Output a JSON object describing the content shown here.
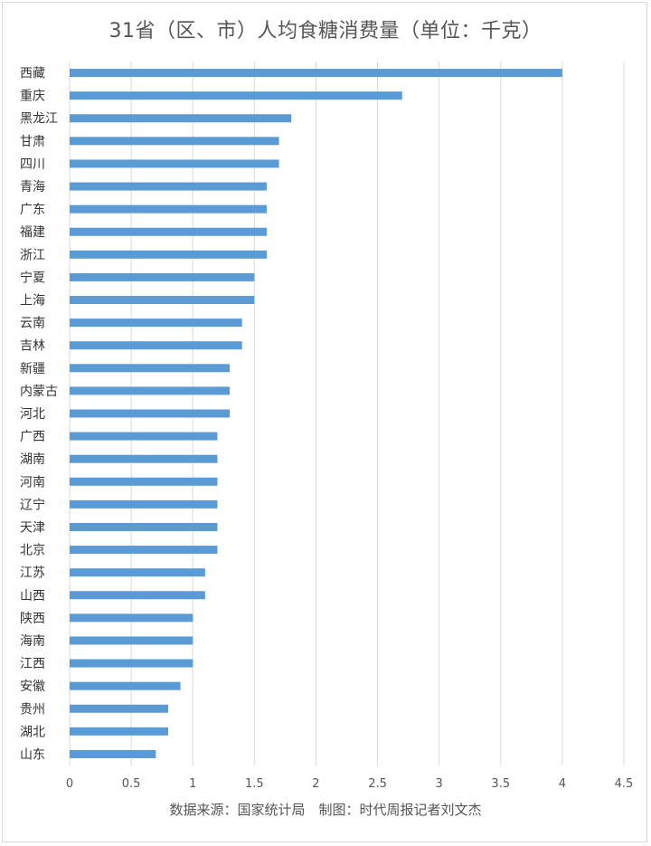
{
  "chart_data": {
    "type": "bar",
    "orientation": "horizontal",
    "title": "31省（区、市）人均食糖消费量（单位：千克）",
    "source_note": "数据来源：国家统计局　制图：时代周报记者刘文杰",
    "xlabel": "",
    "ylabel": "",
    "xlim": [
      0,
      4.5
    ],
    "xticks": [
      "0",
      "0.5",
      "1",
      "1.5",
      "2",
      "2.5",
      "3",
      "3.5",
      "4",
      "4.5"
    ],
    "grid": true,
    "legend": "none",
    "bar_color": "#5b9bd5",
    "categories": [
      "西藏",
      "重庆",
      "黑龙江",
      "甘肃",
      "四川",
      "青海",
      "广东",
      "福建",
      "浙江",
      "宁夏",
      "上海",
      "云南",
      "吉林",
      "新疆",
      "内蒙古",
      "河北",
      "广西",
      "湖南",
      "河南",
      "辽宁",
      "天津",
      "北京",
      "江苏",
      "山西",
      "陕西",
      "海南",
      "江西",
      "安徽",
      "贵州",
      "湖北",
      "山东"
    ],
    "values": [
      4.0,
      2.7,
      1.8,
      1.7,
      1.7,
      1.6,
      1.6,
      1.6,
      1.6,
      1.5,
      1.5,
      1.4,
      1.4,
      1.3,
      1.3,
      1.3,
      1.2,
      1.2,
      1.2,
      1.2,
      1.2,
      1.2,
      1.1,
      1.1,
      1.0,
      1.0,
      1.0,
      0.9,
      0.8,
      0.8,
      0.7
    ]
  }
}
